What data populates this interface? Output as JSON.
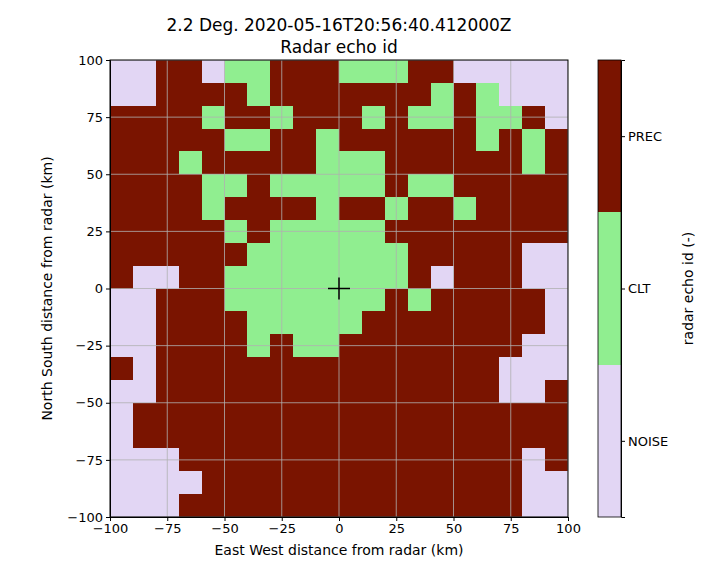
{
  "chart_data": {
    "type": "heatmap",
    "title": "2.2 Deg. 2020-05-16T20:56:40.412000Z",
    "subtitle": "Radar echo id",
    "x_label": "East West distance from radar (km)",
    "y_label": "North South distance from radar (km)",
    "xlim": [
      -100,
      100
    ],
    "ylim": [
      -100,
      100
    ],
    "xticks": [
      {
        "value": -100,
        "label": "−100"
      },
      {
        "value": -75,
        "label": "−75"
      },
      {
        "value": -50,
        "label": "−50"
      },
      {
        "value": -25,
        "label": "−25"
      },
      0,
      25,
      50,
      75,
      100
    ],
    "yticks": [
      {
        "value": -100,
        "label": "−100"
      },
      {
        "value": -75,
        "label": "−75"
      },
      {
        "value": -50,
        "label": "−50"
      },
      {
        "value": -25,
        "label": "−25"
      },
      0,
      25,
      50,
      75,
      100
    ],
    "grid": true,
    "x_edges": [
      -100,
      -90,
      -80,
      -70,
      -60,
      -50,
      -40,
      -30,
      -20,
      -10,
      0,
      10,
      20,
      30,
      40,
      50,
      60,
      70,
      80,
      90,
      100
    ],
    "y_edges": [
      100,
      90,
      80,
      70,
      60,
      50,
      40,
      30,
      20,
      10,
      0,
      -10,
      -20,
      -30,
      -40,
      -50,
      -60,
      -70,
      -80,
      -90,
      -100
    ],
    "cells": [
      [
        1,
        1,
        3,
        3,
        1,
        2,
        2,
        3,
        3,
        3,
        2,
        2,
        2,
        3,
        3,
        1,
        1,
        1,
        1,
        1
      ],
      [
        1,
        1,
        3,
        3,
        3,
        3,
        2,
        3,
        3,
        3,
        3,
        3,
        3,
        3,
        2,
        3,
        2,
        1,
        1,
        1
      ],
      [
        3,
        3,
        3,
        3,
        2,
        3,
        3,
        2,
        3,
        3,
        3,
        2,
        3,
        2,
        2,
        3,
        2,
        2,
        3,
        1
      ],
      [
        3,
        3,
        3,
        3,
        3,
        2,
        2,
        3,
        3,
        2,
        3,
        3,
        3,
        3,
        3,
        3,
        2,
        3,
        2,
        3
      ],
      [
        3,
        3,
        3,
        2,
        3,
        3,
        3,
        3,
        3,
        2,
        2,
        2,
        3,
        3,
        3,
        3,
        3,
        3,
        2,
        3
      ],
      [
        3,
        3,
        3,
        3,
        2,
        2,
        3,
        2,
        2,
        2,
        2,
        2,
        3,
        2,
        2,
        3,
        3,
        3,
        3,
        3
      ],
      [
        3,
        3,
        3,
        3,
        2,
        3,
        3,
        3,
        3,
        2,
        3,
        3,
        2,
        3,
        3,
        2,
        3,
        3,
        3,
        3
      ],
      [
        3,
        3,
        3,
        3,
        3,
        2,
        3,
        2,
        2,
        2,
        2,
        2,
        3,
        3,
        3,
        3,
        3,
        3,
        3,
        3
      ],
      [
        3,
        3,
        3,
        3,
        3,
        3,
        2,
        2,
        2,
        2,
        2,
        2,
        2,
        3,
        3,
        3,
        3,
        3,
        1,
        1
      ],
      [
        3,
        1,
        1,
        3,
        3,
        2,
        2,
        2,
        2,
        2,
        2,
        2,
        2,
        3,
        1,
        3,
        3,
        3,
        1,
        1
      ],
      [
        1,
        1,
        3,
        3,
        3,
        2,
        2,
        2,
        2,
        2,
        2,
        2,
        3,
        2,
        3,
        3,
        3,
        3,
        3,
        1
      ],
      [
        1,
        1,
        3,
        3,
        3,
        3,
        2,
        2,
        2,
        2,
        2,
        3,
        3,
        3,
        3,
        3,
        3,
        3,
        3,
        1
      ],
      [
        1,
        1,
        3,
        3,
        3,
        3,
        2,
        3,
        2,
        2,
        3,
        3,
        3,
        3,
        3,
        3,
        3,
        3,
        1,
        1
      ],
      [
        3,
        1,
        3,
        3,
        3,
        3,
        3,
        3,
        3,
        3,
        3,
        3,
        3,
        3,
        3,
        3,
        3,
        1,
        1,
        1
      ],
      [
        1,
        1,
        3,
        3,
        3,
        3,
        3,
        3,
        3,
        3,
        3,
        3,
        3,
        3,
        3,
        3,
        3,
        1,
        1,
        3
      ],
      [
        1,
        3,
        3,
        3,
        3,
        3,
        3,
        3,
        3,
        3,
        3,
        3,
        3,
        3,
        3,
        3,
        3,
        3,
        3,
        3
      ],
      [
        1,
        3,
        3,
        3,
        3,
        3,
        3,
        3,
        3,
        3,
        3,
        3,
        3,
        3,
        3,
        3,
        3,
        3,
        3,
        3
      ],
      [
        1,
        1,
        1,
        3,
        3,
        3,
        3,
        3,
        3,
        3,
        3,
        3,
        3,
        3,
        3,
        3,
        3,
        3,
        1,
        3
      ],
      [
        1,
        1,
        1,
        1,
        3,
        3,
        3,
        3,
        3,
        3,
        3,
        3,
        3,
        3,
        3,
        3,
        3,
        3,
        1,
        1
      ],
      [
        1,
        1,
        1,
        3,
        3,
        3,
        3,
        3,
        3,
        3,
        3,
        3,
        3,
        3,
        3,
        3,
        3,
        3,
        1,
        1
      ]
    ],
    "radar": {
      "x": 0,
      "y": 0
    },
    "colorbar": {
      "label": "radar echo id (-)",
      "range": [
        0.5,
        3.5
      ],
      "ticks": [
        {
          "value": 1,
          "label": "NOISE"
        },
        {
          "value": 2,
          "label": "CLT"
        },
        {
          "value": 3,
          "label": "PREC"
        }
      ],
      "colors": [
        "#e2d6f4",
        "#90ee90",
        "#7a1400"
      ]
    }
  }
}
